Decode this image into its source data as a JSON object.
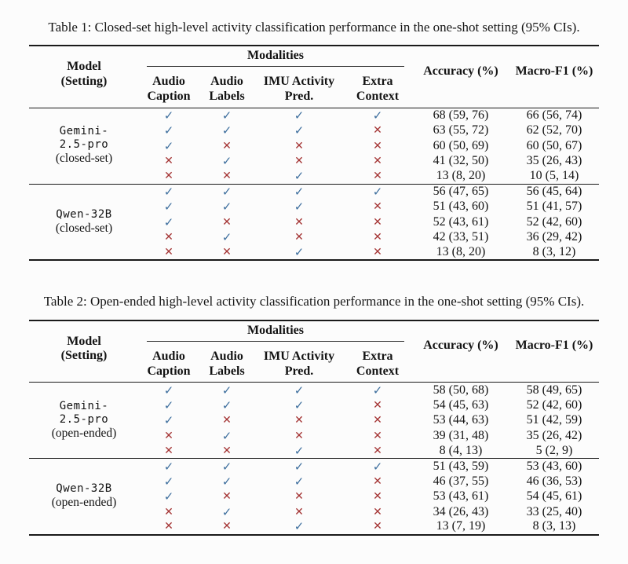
{
  "page": {
    "background": "#fcfcfc"
  },
  "colors": {
    "check": "#3e6f9e",
    "cross": "#a43434",
    "rule": "#1a1a1a"
  },
  "icons": {
    "check": "✓",
    "cross": "✕"
  },
  "tables": [
    {
      "caption": "Table 1: Closed-set high-level activity classification performance in the one-shot setting (95% CIs).",
      "header": {
        "model_line1": "Model",
        "model_line2": "(Setting)",
        "modalities_label": "Modalities",
        "cols": [
          {
            "line1": "Audio",
            "line2": "Caption"
          },
          {
            "line1": "Audio",
            "line2": "Labels"
          },
          {
            "line1": "IMU Activity",
            "line2": "Pred."
          },
          {
            "line1": "Extra",
            "line2": "Context"
          }
        ],
        "accuracy": "Accuracy (%)",
        "macro_f1": "Macro-F1 (%)"
      },
      "groups": [
        {
          "model_lines": [
            "Gemini-",
            "2.5-pro"
          ],
          "setting": "(closed-set)",
          "rows": [
            {
              "marks": [
                "check",
                "check",
                "check",
                "check"
              ],
              "accuracy": "68 (59, 76)",
              "macro_f1": "66 (56, 74)"
            },
            {
              "marks": [
                "check",
                "check",
                "check",
                "cross"
              ],
              "accuracy": "63 (55, 72)",
              "macro_f1": "62 (52, 70)"
            },
            {
              "marks": [
                "check",
                "cross",
                "cross",
                "cross"
              ],
              "accuracy": "60 (50, 69)",
              "macro_f1": "60 (50, 67)"
            },
            {
              "marks": [
                "cross",
                "check",
                "cross",
                "cross"
              ],
              "accuracy": "41 (32, 50)",
              "macro_f1": "35 (26, 43)"
            },
            {
              "marks": [
                "cross",
                "cross",
                "check",
                "cross"
              ],
              "accuracy": "13 (8, 20)",
              "macro_f1": "10 (5, 14)"
            }
          ]
        },
        {
          "model_lines": [
            "Qwen-32B"
          ],
          "setting": "(closed-set)",
          "rows": [
            {
              "marks": [
                "check",
                "check",
                "check",
                "check"
              ],
              "accuracy": "56 (47, 65)",
              "macro_f1": "56 (45, 64)"
            },
            {
              "marks": [
                "check",
                "check",
                "check",
                "cross"
              ],
              "accuracy": "51 (43, 60)",
              "macro_f1": "51 (41, 57)"
            },
            {
              "marks": [
                "check",
                "cross",
                "cross",
                "cross"
              ],
              "accuracy": "52 (43, 61)",
              "macro_f1": "52 (42, 60)"
            },
            {
              "marks": [
                "cross",
                "check",
                "cross",
                "cross"
              ],
              "accuracy": "42 (33, 51)",
              "macro_f1": "36 (29, 42)"
            },
            {
              "marks": [
                "cross",
                "cross",
                "check",
                "cross"
              ],
              "accuracy": "13 (8, 20)",
              "macro_f1": "8 (3, 12)"
            }
          ]
        }
      ]
    },
    {
      "caption": "Table 2: Open-ended high-level activity classification performance in the one-shot setting (95% CIs).",
      "header": {
        "model_line1": "Model",
        "model_line2": "(Setting)",
        "modalities_label": "Modalities",
        "cols": [
          {
            "line1": "Audio",
            "line2": "Caption"
          },
          {
            "line1": "Audio",
            "line2": "Labels"
          },
          {
            "line1": "IMU Activity",
            "line2": "Pred."
          },
          {
            "line1": "Extra",
            "line2": "Context"
          }
        ],
        "accuracy": "Accuracy (%)",
        "macro_f1": "Macro-F1 (%)"
      },
      "groups": [
        {
          "model_lines": [
            "Gemini-",
            "2.5-pro"
          ],
          "setting": "(open-ended)",
          "rows": [
            {
              "marks": [
                "check",
                "check",
                "check",
                "check"
              ],
              "accuracy": "58 (50, 68)",
              "macro_f1": "58 (49, 65)"
            },
            {
              "marks": [
                "check",
                "check",
                "check",
                "cross"
              ],
              "accuracy": "54 (45, 63)",
              "macro_f1": "52 (42, 60)"
            },
            {
              "marks": [
                "check",
                "cross",
                "cross",
                "cross"
              ],
              "accuracy": "53 (44, 63)",
              "macro_f1": "51 (42, 59)"
            },
            {
              "marks": [
                "cross",
                "check",
                "cross",
                "cross"
              ],
              "accuracy": "39 (31, 48)",
              "macro_f1": "35 (26, 42)"
            },
            {
              "marks": [
                "cross",
                "cross",
                "check",
                "cross"
              ],
              "accuracy": "8 (4, 13)",
              "macro_f1": "5 (2, 9)"
            }
          ]
        },
        {
          "model_lines": [
            "Qwen-32B"
          ],
          "setting": "(open-ended)",
          "rows": [
            {
              "marks": [
                "check",
                "check",
                "check",
                "check"
              ],
              "accuracy": "51 (43, 59)",
              "macro_f1": "53 (43, 60)"
            },
            {
              "marks": [
                "check",
                "check",
                "check",
                "cross"
              ],
              "accuracy": "46 (37, 55)",
              "macro_f1": "46 (36, 53)"
            },
            {
              "marks": [
                "check",
                "cross",
                "cross",
                "cross"
              ],
              "accuracy": "53 (43, 61)",
              "macro_f1": "54 (45, 61)"
            },
            {
              "marks": [
                "cross",
                "check",
                "cross",
                "cross"
              ],
              "accuracy": "34 (26, 43)",
              "macro_f1": "33 (25, 40)"
            },
            {
              "marks": [
                "cross",
                "cross",
                "check",
                "cross"
              ],
              "accuracy": "13 (7, 19)",
              "macro_f1": "8 (3, 13)"
            }
          ]
        }
      ]
    }
  ]
}
